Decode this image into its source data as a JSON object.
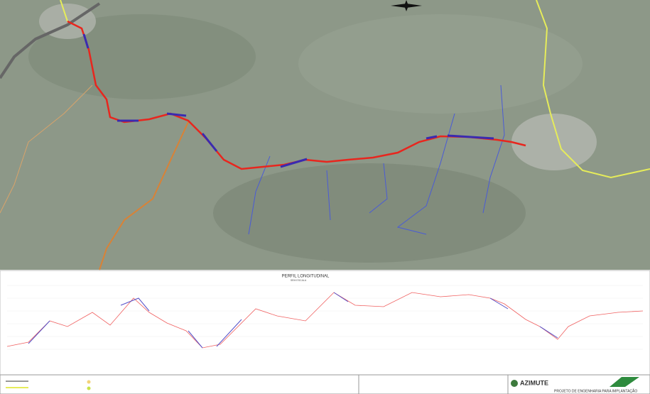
{
  "profile": {
    "title": "PERFIL LONGITUDINAL",
    "subtitle": "SEM ESCALA"
  },
  "title_block": {
    "company": "AZIMUTE",
    "project": "PROJETO DE ENGENHARIA PARA IMPLANTAÇÃO"
  }
}
